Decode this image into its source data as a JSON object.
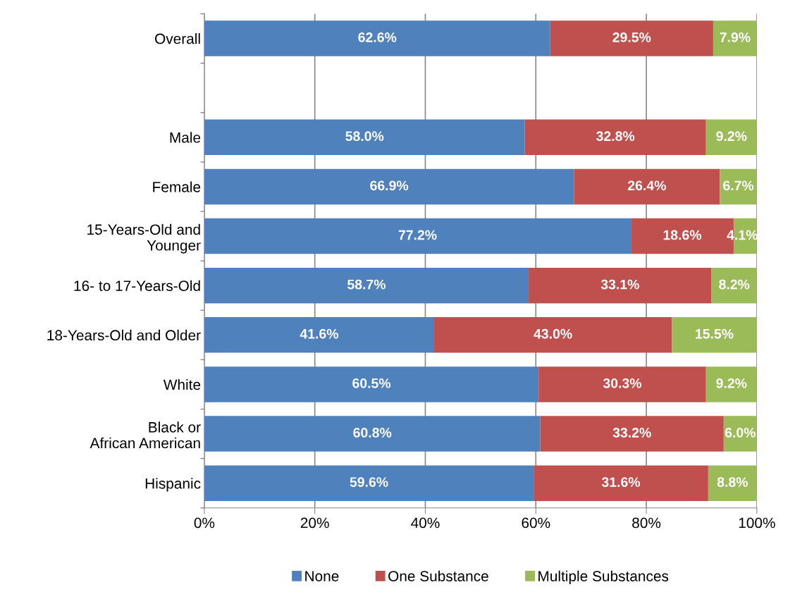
{
  "chart_data": {
    "type": "bar",
    "orientation": "horizontal",
    "stacked": true,
    "categories": [
      "Overall",
      null,
      "Male",
      "Female",
      "15-Years-Old and\nYounger",
      "16- to 17-Years-Old",
      "18-Years-Old and Older",
      "White",
      "Black or\nAfrican American",
      "Hispanic"
    ],
    "series": [
      {
        "name": "None",
        "color": "#4f81bd",
        "values": [
          62.6,
          null,
          58.0,
          66.9,
          77.2,
          58.7,
          41.6,
          60.5,
          60.8,
          59.6
        ],
        "value_labels": [
          "62.6%",
          null,
          "58.0%",
          "66.9%",
          "77.2%",
          "58.7%",
          "41.6%",
          "60.5%",
          "60.8%",
          "59.6%"
        ]
      },
      {
        "name": "One Substance",
        "color": "#c0504d",
        "values": [
          29.5,
          null,
          32.8,
          26.4,
          18.6,
          33.1,
          43.0,
          30.3,
          33.2,
          31.6
        ],
        "value_labels": [
          "29.5%",
          null,
          "32.8%",
          "26.4%",
          "18.6%",
          "33.1%",
          "43.0%",
          "30.3%",
          "33.2%",
          "31.6%"
        ]
      },
      {
        "name": "Multiple Substances",
        "color": "#9bbb59",
        "values": [
          7.9,
          null,
          9.2,
          6.7,
          4.1,
          8.2,
          15.5,
          9.2,
          6.0,
          8.8
        ],
        "value_labels": [
          "7.9%",
          null,
          "9.2%",
          "6.7%",
          "4.1%",
          "8.2%",
          "15.5%",
          "9.2%",
          "6.0%",
          "8.8%"
        ]
      }
    ],
    "xlim": [
      0,
      100
    ],
    "xticks": [
      {
        "value": 0,
        "label": "0%"
      },
      {
        "value": 20,
        "label": "20%"
      },
      {
        "value": 40,
        "label": "40%"
      },
      {
        "value": 60,
        "label": "60%"
      },
      {
        "value": 80,
        "label": "80%"
      },
      {
        "value": 100,
        "label": "100%"
      }
    ],
    "grid": "x",
    "legend": "bottom"
  }
}
